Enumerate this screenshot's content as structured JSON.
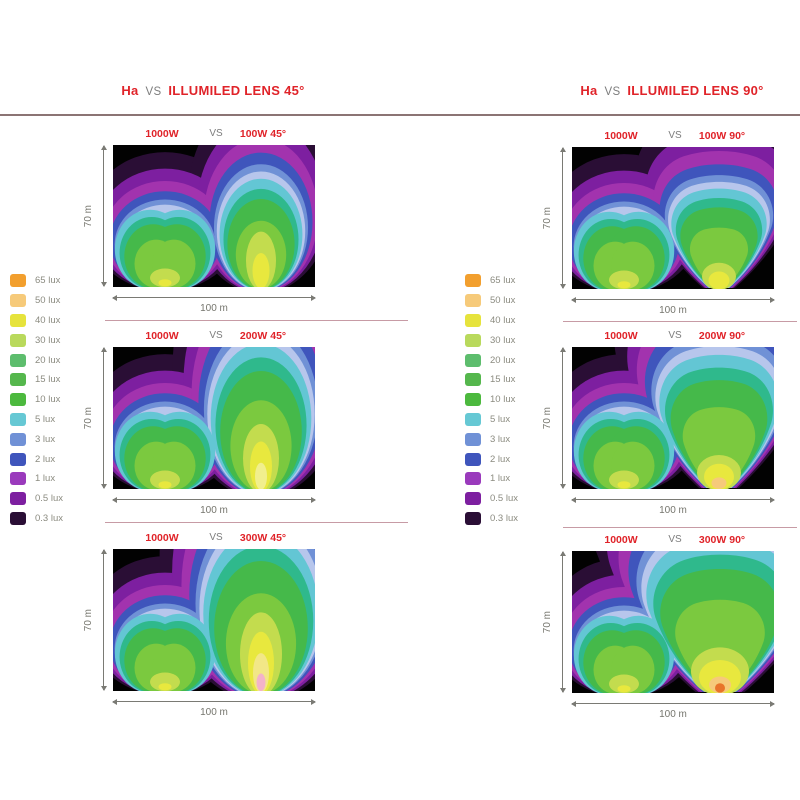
{
  "titles": {
    "left": {
      "prefix": "Ha",
      "vs": "VS",
      "name": "ILLUMILED LENS",
      "angle": "45°"
    },
    "right": {
      "prefix": "Ha",
      "vs": "VS",
      "name": "ILLUMILED LENS",
      "angle": "90°"
    }
  },
  "axis": {
    "width": "100 m",
    "height": "70 m"
  },
  "legend": {
    "items": [
      {
        "label": "65 lux",
        "color": "#f29f2e"
      },
      {
        "label": "50 lux",
        "color": "#f6ca7a"
      },
      {
        "label": "40 lux",
        "color": "#e6e33c"
      },
      {
        "label": "30 lux",
        "color": "#b9d95c"
      },
      {
        "label": "20 lux",
        "color": "#5dbd6d"
      },
      {
        "label": "15 lux",
        "color": "#55b74d"
      },
      {
        "label": "10 lux",
        "color": "#4cb93e"
      },
      {
        "label": "5 lux",
        "color": "#66c8d4"
      },
      {
        "label": "3 lux",
        "color": "#7091d6"
      },
      {
        "label": "2 lux",
        "color": "#3f55bc"
      },
      {
        "label": "1 lux",
        "color": "#9a3abc"
      },
      {
        "label": "0.5 lux",
        "color": "#7d1fa0"
      },
      {
        "label": "0.3 lux",
        "color": "#2a0e35"
      }
    ]
  },
  "chart_data": {
    "type": "heatmap",
    "description": "Ground illuminance (lux) contour maps over a 100 m x 70 m area comparing a 1000W halogen floodlight (left blob in each map) against ILLUMILED LED lens fixtures (right blob) at 45° and 90° beam angles and 100W/200W/300W power.",
    "area": {
      "width_m": 100,
      "height_m": 70
    },
    "lux_levels": [
      65,
      50,
      40,
      30,
      20,
      15,
      10,
      5,
      3,
      2,
      1,
      0.5,
      0.3
    ],
    "band_colors": [
      "#2a0e35",
      "#7d1fa0",
      "#a233ae",
      "#3f55bc",
      "#7091d6",
      "#b7c6ec",
      "#63c6d4",
      "#2fb98c",
      "#45b94a",
      "#7bc93f"
    ],
    "panels": [
      {
        "group": "45",
        "watts": 100,
        "left_lamp": "1000W",
        "vs": "VS",
        "right_lamp": "100W  45°",
        "left_peak_lux": 40,
        "right_peak_lux": 40
      },
      {
        "group": "45",
        "watts": 200,
        "left_lamp": "1000W",
        "vs": "VS",
        "right_lamp": "200W  45°",
        "left_peak_lux": 40,
        "right_peak_lux": 40
      },
      {
        "group": "45",
        "watts": 300,
        "left_lamp": "1000W",
        "vs": "VS",
        "right_lamp": "300W  45°",
        "left_peak_lux": 40,
        "right_peak_lux": 65
      },
      {
        "group": "90",
        "watts": 100,
        "left_lamp": "1000W",
        "vs": "VS",
        "right_lamp": "100W  90°",
        "left_peak_lux": 40,
        "right_peak_lux": 40
      },
      {
        "group": "90",
        "watts": 200,
        "left_lamp": "1000W",
        "vs": "VS",
        "right_lamp": "200W  90°",
        "left_peak_lux": 40,
        "right_peak_lux": 50
      },
      {
        "group": "90",
        "watts": 300,
        "left_lamp": "1000W",
        "vs": "VS",
        "right_lamp": "300W  90°",
        "left_peak_lux": 40,
        "right_peak_lux": 65
      }
    ]
  }
}
